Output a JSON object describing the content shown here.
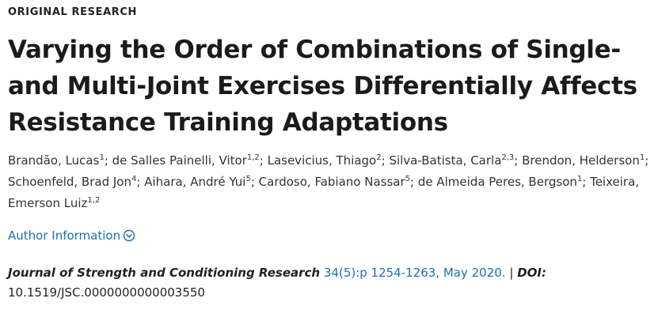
{
  "article_type": "ORIGINAL RESEARCH",
  "title_lines": [
    "Varying the Order of Combinations of Single-",
    "and Multi-Joint Exercises Differentially Affects",
    "Resistance Training Adaptations"
  ],
  "authors": [
    {
      "name": "Brandão, Lucas",
      "aff": "1"
    },
    {
      "name": "de Salles Painelli, Vitor",
      "aff": "1,2"
    },
    {
      "name": "Lasevicius, Thiago",
      "aff": "2"
    },
    {
      "name": "Silva-Batista, Carla",
      "aff": "2,3"
    },
    {
      "name": "Brendon, Helderson",
      "aff": "1"
    },
    {
      "name": "Schoenfeld, Brad Jon",
      "aff": "4"
    },
    {
      "name": "Aihara, André Yui",
      "aff": "5"
    },
    {
      "name": "Cardoso, Fabiano Nassar",
      "aff": "5"
    },
    {
      "name": "de Almeida Peres, Bergson",
      "aff": "1"
    },
    {
      "name": "Teixeira, Emerson Luiz",
      "aff": "1,2"
    }
  ],
  "author_info_label": "Author Information",
  "author_info_icon": "chevron-down-circle-icon",
  "citation": {
    "journal": "Journal of Strength and Conditioning Research",
    "volume_pages": "34(5):p 1254-1263, May 2020.",
    "separator": "|",
    "doi_label": "DOI:",
    "doi": "10.1519/JSC.0000000000003550"
  },
  "colors": {
    "link": "#1f6fb5",
    "text": "#222222"
  }
}
